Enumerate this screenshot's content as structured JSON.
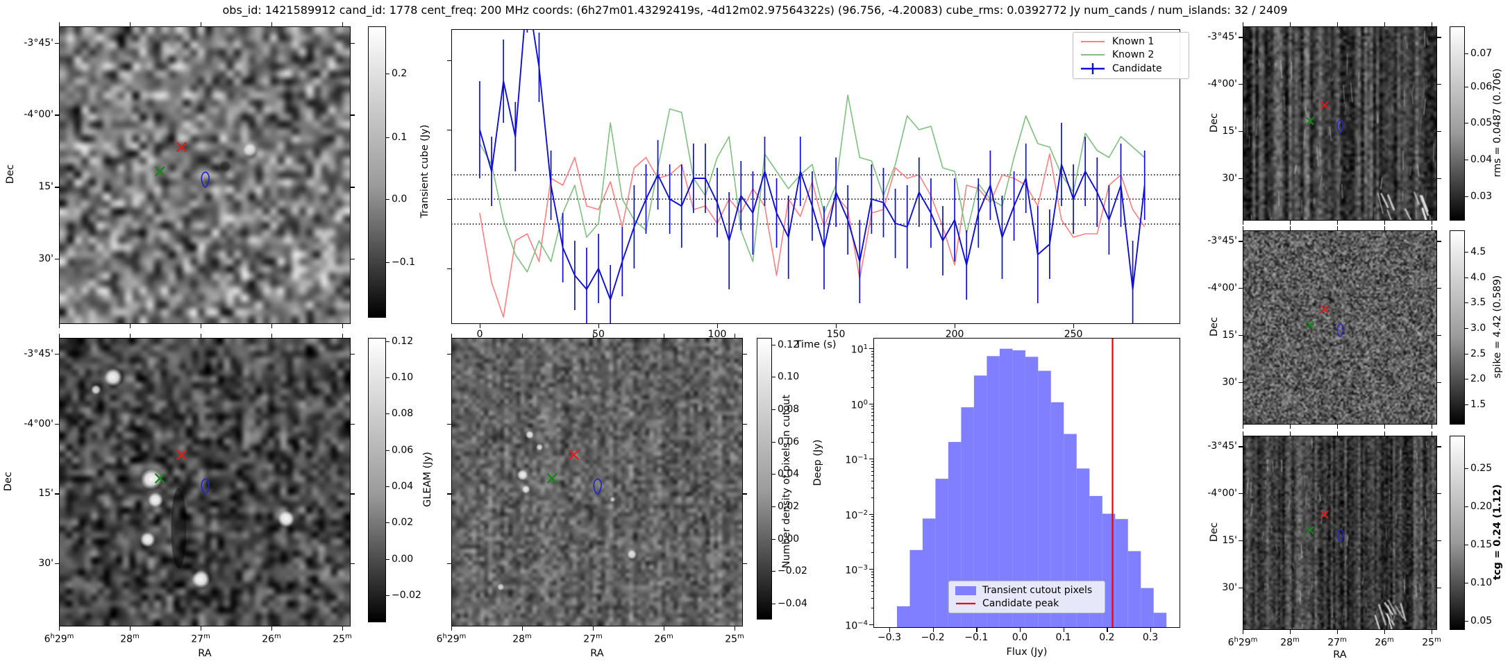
{
  "header": {
    "title": "obs_id: 1421589912 cand_id: 1778 cent_freq: 200 MHz coords: (6h27m01.43292419s, -4d12m02.97564322s) (96.756, -4.20083) cube_rms: 0.0392772 Jy num_cands / num_islands: 32 / 2409"
  },
  "colors": {
    "known1": "#ff7f7f",
    "known2": "#7fbf7f",
    "candidate": "#0d0dd6",
    "hist_bar": "#7f7fff",
    "candidate_peak_line": "#ee0000",
    "marker_red": "#e31a1a",
    "marker_green": "#168716",
    "contour_blue": "#2424cc"
  },
  "axes": {
    "dec_label": "Dec",
    "ra_label": "RA",
    "dec_ticks": [
      "-3°45'",
      "-4°00'",
      "15'",
      "30'"
    ],
    "ra_ticks": [
      "6h29m",
      "28m",
      "27m",
      "26m",
      "25m"
    ]
  },
  "markers": {
    "red_x": {
      "rx": 0.42,
      "ry": 0.405
    },
    "green_x": {
      "rx": 0.345,
      "ry": 0.487
    },
    "blue_contour": {
      "rx": 0.502,
      "ry": 0.515
    }
  },
  "colorbars": {
    "transient": {
      "label": "Transient cube (Jy)",
      "ticks": [
        "0.2",
        "0.1",
        "0.0",
        "−0.1"
      ]
    },
    "gleam": {
      "label": "GLEAM (Jy)",
      "ticks": [
        "0.12",
        "0.10",
        "0.08",
        "0.06",
        "0.04",
        "0.02",
        "0.00",
        "−0.02"
      ]
    },
    "deep": {
      "label": "Deep (Jy)",
      "ticks": [
        "0.12",
        "0.10",
        "0.08",
        "0.06",
        "0.04",
        "0.02",
        "0.00",
        "−0.02",
        "−0.04"
      ]
    },
    "rms": {
      "label": "rms = 0.0487 (0.706)",
      "ticks": [
        "0.07",
        "0.06",
        "0.05",
        "0.04",
        "0.03"
      ]
    },
    "spike": {
      "label": "spike = 4.42 (0.589)",
      "ticks": [
        "4.5",
        "4.0",
        "3.5",
        "3.0",
        "2.5",
        "2.0",
        "1.5"
      ]
    },
    "tcg": {
      "label": "tcg = 0.24 (1.12)",
      "ticks": [
        "0.25",
        "0.20",
        "0.15",
        "0.10",
        "0.05"
      ],
      "bold": true
    }
  },
  "chart_data": [
    {
      "id": "lightcurve",
      "type": "line",
      "xlabel": "Time (s)",
      "ylabel": "",
      "xlim": [
        -12,
        295
      ],
      "ylim": [
        -0.175,
        0.25
      ],
      "xticks": [
        0,
        50,
        100,
        150,
        200,
        250
      ],
      "hlines": [
        0.035,
        0.0,
        -0.036
      ],
      "legend_position": "upper right",
      "x": [
        0,
        5,
        10,
        15,
        20,
        25,
        30,
        35,
        40,
        45,
        50,
        55,
        60,
        65,
        70,
        75,
        80,
        85,
        90,
        95,
        100,
        105,
        110,
        115,
        120,
        125,
        130,
        135,
        140,
        145,
        150,
        155,
        160,
        165,
        170,
        175,
        180,
        185,
        190,
        195,
        200,
        205,
        210,
        215,
        220,
        225,
        230,
        235,
        240,
        245,
        250,
        255,
        260,
        265,
        270,
        275,
        280
      ],
      "series": [
        {
          "name": "Known 1",
          "y": [
            -0.02,
            -0.12,
            -0.17,
            -0.06,
            -0.05,
            -0.09,
            0.03,
            0.02,
            0.06,
            -0.01,
            -0.015,
            0.025,
            -0.04,
            0.045,
            0.06,
            0.03,
            0.035,
            0.05,
            -0.015,
            -0.01,
            -0.035,
            0.0,
            -0.02,
            0.015,
            -0.01,
            -0.11,
            0.0,
            -0.025,
            0.025,
            -0.04,
            0.005,
            -0.015,
            -0.115,
            -0.02,
            -0.015,
            0.045,
            0.03,
            0.035,
            0.005,
            -0.04,
            -0.095,
            0.02,
            0.015,
            -0.005,
            0.035,
            0.03,
            0.02,
            -0.01,
            0.065,
            -0.03,
            -0.055,
            -0.05,
            -0.05,
            0.02,
            0.035,
            -0.015,
            -0.04
          ]
        },
        {
          "name": "Known 2",
          "y": [
            0.08,
            0.05,
            -0.03,
            -0.08,
            -0.105,
            -0.06,
            -0.09,
            -0.02,
            0.02,
            -0.055,
            -0.035,
            0.11,
            0.0,
            -0.03,
            -0.045,
            0.045,
            0.13,
            0.125,
            0.03,
            0.005,
            0.06,
            0.09,
            -0.045,
            -0.09,
            0.065,
            0.04,
            0.015,
            0.035,
            0.05,
            -0.02,
            0.02,
            0.15,
            0.06,
            0.055,
            0.005,
            0.05,
            0.12,
            0.1,
            0.105,
            0.045,
            0.04,
            -0.05,
            0.022,
            0.0,
            -0.01,
            0.06,
            0.12,
            0.08,
            0.075,
            0.035,
            0.01,
            0.095,
            0.07,
            0.06,
            0.09,
            0.075,
            0.06
          ]
        },
        {
          "name": "Candidate",
          "y": [
            0.1,
            0.04,
            0.17,
            0.09,
            0.3,
            0.19,
            0.02,
            -0.07,
            -0.11,
            -0.13,
            -0.1,
            -0.145,
            -0.09,
            -0.04,
            0.0,
            0.035,
            0.0,
            -0.01,
            0.03,
            0.03,
            -0.005,
            -0.06,
            0.005,
            -0.02,
            0.04,
            -0.02,
            -0.055,
            0.04,
            -0.01,
            -0.07,
            0.01,
            -0.03,
            -0.09,
            0.0,
            -0.005,
            -0.035,
            -0.04,
            0.01,
            -0.02,
            -0.06,
            -0.03,
            -0.095,
            -0.02,
            0.02,
            -0.055,
            -0.01,
            0.03,
            -0.08,
            -0.065,
            0.05,
            0.0,
            0.04,
            0.01,
            -0.03,
            0.02,
            -0.13,
            0.02
          ],
          "yerr": [
            0.07,
            0.05,
            0.06,
            0.05,
            0.06,
            0.05,
            0.05,
            0.05,
            0.05,
            0.06,
            0.05,
            0.05,
            0.05,
            0.06,
            0.05,
            0.05,
            0.05,
            0.06,
            0.05,
            0.05,
            0.05,
            0.07,
            0.05,
            0.06,
            0.05,
            0.05,
            0.06,
            0.05,
            0.05,
            0.06,
            0.05,
            0.05,
            0.06,
            0.05,
            0.05,
            0.05,
            0.06,
            0.05,
            0.05,
            0.05,
            0.06,
            0.05,
            0.05,
            0.05,
            0.06,
            0.05,
            0.05,
            0.07,
            0.05,
            0.06,
            0.05,
            0.05,
            0.05,
            0.05,
            0.06,
            0.07,
            0.05
          ]
        }
      ]
    },
    {
      "id": "flux_histogram",
      "type": "bar",
      "xlabel": "Flux (Jy)",
      "ylabel": "Number density of pixels in cutout",
      "yscale": "log",
      "xlim": [
        -0.3367,
        0.3686
      ],
      "ylim": [
        4.2e-05,
        13
      ],
      "xtick_labels": [
        "−0.3",
        "−0.2",
        "−0.1",
        "0.0",
        "0.1",
        "0.2",
        "0.3"
      ],
      "xtick_values": [
        -0.3,
        -0.2,
        -0.1,
        0.0,
        0.1,
        0.2,
        0.3
      ],
      "ytick_exponents": [
        1,
        0,
        -1,
        -2,
        -3,
        -4
      ],
      "bin_start": -0.312,
      "bin_width": 0.0295,
      "densities": [
        8.5e-05,
        0.00021,
        0.0022,
        0.0082,
        0.043,
        0.2,
        0.85,
        3.2,
        7.2,
        9.8,
        9.2,
        7.0,
        3.9,
        1.05,
        0.28,
        0.066,
        0.021,
        0.01,
        0.008,
        0.0021,
        0.00045,
        0.00016
      ],
      "vline": {
        "x": 0.213
      },
      "legend": [
        "Transient cutout pixels",
        "Candidate peak"
      ],
      "legend_position": "lower center"
    }
  ]
}
